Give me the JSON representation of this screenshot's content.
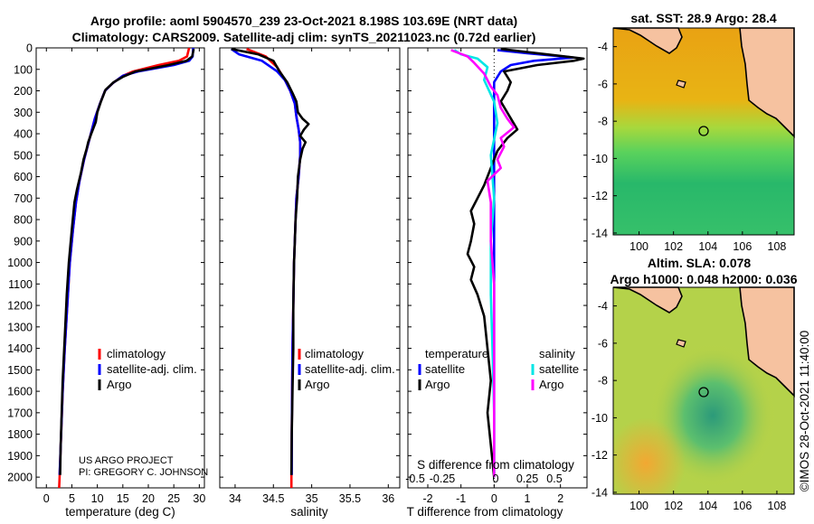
{
  "colors": {
    "climatology": "#ff0000",
    "satellite_adj": "#0000ff",
    "argo": "#000000",
    "satellite_s": "#00e6e6",
    "argo_s": "#ff00ff",
    "land": "#f6c2a0"
  },
  "header": {
    "line1": "Argo profile: aoml 5904570_239 23-Oct-2021 8.198S 103.69E (NRT data)",
    "line2": "Climatology: CARS2009. Satellite-adj clim: synTS_20211023.nc (0.72d earlier)"
  },
  "credits": {
    "project": "US ARGO PROJECT",
    "pi": "PI: GREGORY C. JOHNSON",
    "imos": "©IMOS 28-Oct-2021 11:40:00"
  },
  "chart_data": [
    {
      "type": "line",
      "name": "temperature",
      "xlabel": "temperature (deg C)",
      "xlim": [
        -2,
        31
      ],
      "xticks": [
        0,
        5,
        10,
        15,
        20,
        25,
        30
      ],
      "ylim": [
        2050,
        0
      ],
      "yticks": [
        0,
        100,
        200,
        300,
        400,
        500,
        600,
        700,
        800,
        900,
        1000,
        1100,
        1200,
        1300,
        1400,
        1500,
        1600,
        1700,
        1800,
        1900,
        2000
      ],
      "legend": [
        "climatology",
        "satellite-adj. clim.",
        "Argo"
      ],
      "series": [
        {
          "name": "climatology",
          "color": "#ff0000",
          "points": [
            [
              28.0,
              0
            ],
            [
              27.6,
              40
            ],
            [
              26,
              60
            ],
            [
              22,
              80
            ],
            [
              17,
              110
            ],
            [
              15,
              130
            ],
            [
              13,
              165
            ],
            [
              11.5,
              200
            ],
            [
              10.5,
              260
            ],
            [
              9.5,
              330
            ],
            [
              8.5,
              420
            ],
            [
              7.4,
              520
            ],
            [
              6.5,
              620
            ],
            [
              5.8,
              720
            ],
            [
              5.2,
              850
            ],
            [
              4.6,
              1000
            ],
            [
              4.1,
              1200
            ],
            [
              3.6,
              1400
            ],
            [
              3.2,
              1600
            ],
            [
              2.9,
              1800
            ],
            [
              2.6,
              2000
            ],
            [
              2.5,
              2050
            ]
          ]
        },
        {
          "name": "satellite-adj. clim.",
          "color": "#0000ff",
          "points": [
            [
              28.8,
              0
            ],
            [
              28.7,
              40
            ],
            [
              28,
              60
            ],
            [
              25,
              80
            ],
            [
              18,
              110
            ],
            [
              15,
              130
            ],
            [
              13,
              165
            ],
            [
              11.5,
              200
            ],
            [
              10.5,
              260
            ],
            [
              9.5,
              330
            ],
            [
              8.5,
              420
            ],
            [
              7.4,
              520
            ],
            [
              6.5,
              620
            ],
            [
              5.8,
              720
            ],
            [
              5.2,
              850
            ],
            [
              4.6,
              1000
            ],
            [
              4.1,
              1200
            ],
            [
              3.6,
              1400
            ],
            [
              3.2,
              1600
            ],
            [
              2.9,
              1800
            ],
            [
              2.6,
              1990
            ]
          ]
        },
        {
          "name": "Argo",
          "color": "#000000",
          "points": [
            [
              28.9,
              5
            ],
            [
              28.6,
              40
            ],
            [
              27.5,
              60
            ],
            [
              24,
              80
            ],
            [
              17.5,
              110
            ],
            [
              15,
              135
            ],
            [
              13.2,
              160
            ],
            [
              11.6,
              195
            ],
            [
              10.7,
              250
            ],
            [
              10,
              300
            ],
            [
              9.7,
              345
            ],
            [
              8.8,
              400
            ],
            [
              8.2,
              440
            ],
            [
              7.9,
              470
            ],
            [
              7.3,
              520
            ],
            [
              6.8,
              580
            ],
            [
              6.0,
              660
            ],
            [
              5.5,
              720
            ],
            [
              5.1,
              820
            ],
            [
              4.7,
              920
            ],
            [
              4.4,
              1000
            ],
            [
              4.0,
              1150
            ],
            [
              3.8,
              1250
            ],
            [
              3.5,
              1400
            ],
            [
              3.2,
              1550
            ],
            [
              3.0,
              1700
            ],
            [
              2.8,
              1850
            ],
            [
              2.7,
              1990
            ]
          ]
        }
      ]
    },
    {
      "type": "line",
      "name": "salinity",
      "xlabel": "salinity",
      "xlim": [
        33.8,
        36.15
      ],
      "xticks": [
        34,
        34.5,
        35,
        35.5,
        36
      ],
      "ylim": [
        2050,
        0
      ],
      "legend": [
        "climatology",
        "satellite-adj. clim.",
        "Argo"
      ],
      "series": [
        {
          "name": "climatology",
          "color": "#ff0000",
          "points": [
            [
              34.15,
              5
            ],
            [
              34.4,
              40
            ],
            [
              34.55,
              90
            ],
            [
              34.65,
              150
            ],
            [
              34.72,
              200
            ],
            [
              34.78,
              260
            ],
            [
              34.8,
              320
            ],
            [
              34.83,
              380
            ],
            [
              34.85,
              440
            ],
            [
              34.85,
              500
            ],
            [
              34.83,
              600
            ],
            [
              34.8,
              700
            ],
            [
              34.79,
              800
            ],
            [
              34.77,
              1000
            ],
            [
              34.76,
              1200
            ],
            [
              34.75,
              1400
            ],
            [
              34.745,
              1600
            ],
            [
              34.74,
              1800
            ],
            [
              34.735,
              2000
            ],
            [
              34.735,
              2050
            ]
          ]
        },
        {
          "name": "satellite-adj. clim.",
          "color": "#0000ff",
          "points": [
            [
              33.95,
              5
            ],
            [
              34.05,
              30
            ],
            [
              34.35,
              60
            ],
            [
              34.55,
              110
            ],
            [
              34.65,
              150
            ],
            [
              34.72,
              200
            ],
            [
              34.78,
              260
            ],
            [
              34.8,
              320
            ],
            [
              34.83,
              380
            ],
            [
              34.85,
              440
            ],
            [
              34.85,
              500
            ],
            [
              34.83,
              600
            ],
            [
              34.8,
              700
            ],
            [
              34.79,
              800
            ],
            [
              34.77,
              1000
            ],
            [
              34.76,
              1200
            ],
            [
              34.75,
              1400
            ],
            [
              34.745,
              1600
            ],
            [
              34.74,
              1800
            ],
            [
              34.74,
              1990
            ]
          ]
        },
        {
          "name": "Argo",
          "color": "#000000",
          "points": [
            [
              33.95,
              5
            ],
            [
              34.3,
              30
            ],
            [
              34.5,
              60
            ],
            [
              34.58,
              110
            ],
            [
              34.68,
              160
            ],
            [
              34.75,
              210
            ],
            [
              34.8,
              250
            ],
            [
              34.82,
              300
            ],
            [
              34.88,
              330
            ],
            [
              34.96,
              355
            ],
            [
              34.9,
              380
            ],
            [
              34.85,
              410
            ],
            [
              34.92,
              440
            ],
            [
              34.88,
              470
            ],
            [
              34.85,
              520
            ],
            [
              34.82,
              600
            ],
            [
              34.81,
              700
            ],
            [
              34.79,
              800
            ],
            [
              34.78,
              900
            ],
            [
              34.77,
              1000
            ],
            [
              34.76,
              1200
            ],
            [
              34.76,
              1400
            ],
            [
              34.75,
              1600
            ],
            [
              34.74,
              1800
            ],
            [
              34.735,
              1990
            ]
          ]
        }
      ]
    },
    {
      "type": "line",
      "name": "differences",
      "xlabel": "T difference from climatology",
      "xlabel2": "S difference from climatology",
      "xlim": [
        -2.6,
        2.8
      ],
      "xticks": [
        -2,
        -1,
        0,
        1,
        2
      ],
      "s_tick_labels": [
        "-0.5",
        "-0.25",
        "0",
        "0.25",
        "0.5"
      ],
      "ylim": [
        2050,
        0
      ],
      "legend_headers": [
        "temperature",
        "salinity"
      ],
      "legend_items": [
        "satellite",
        "Argo",
        "satellite",
        "Argo"
      ],
      "series": [
        {
          "name": "temperature satellite",
          "color": "#0000ff",
          "points": [
            [
              0.1,
              10
            ],
            [
              1.0,
              25
            ],
            [
              2.4,
              45
            ],
            [
              1.2,
              60
            ],
            [
              0.5,
              80
            ],
            [
              0.2,
              110
            ],
            [
              0,
              160
            ],
            [
              0,
              2000
            ]
          ]
        },
        {
          "name": "temperature Argo",
          "color": "#000000",
          "points": [
            [
              0.2,
              5
            ],
            [
              2.7,
              50
            ],
            [
              2.4,
              60
            ],
            [
              1.3,
              80
            ],
            [
              0.3,
              110
            ],
            [
              0.5,
              160
            ],
            [
              0.4,
              200
            ],
            [
              0.2,
              250
            ],
            [
              0.7,
              380
            ],
            [
              0.4,
              420
            ],
            [
              0.1,
              480
            ],
            [
              -0.1,
              560
            ],
            [
              -0.3,
              640
            ],
            [
              -0.5,
              700
            ],
            [
              -0.7,
              760
            ],
            [
              -0.6,
              820
            ],
            [
              -0.7,
              900
            ],
            [
              -0.8,
              960
            ],
            [
              -0.6,
              1020
            ],
            [
              -0.7,
              1080
            ],
            [
              -0.5,
              1150
            ],
            [
              -0.3,
              1250
            ],
            [
              -0.2,
              1400
            ],
            [
              -0.1,
              1550
            ],
            [
              -0.2,
              1700
            ],
            [
              -0.1,
              1850
            ],
            [
              0,
              2000
            ]
          ]
        },
        {
          "name": "salinity satellite",
          "color": "#00e6e6",
          "points": [
            [
              -1.2,
              10
            ],
            [
              -1.0,
              30
            ],
            [
              -0.5,
              50
            ],
            [
              -0.2,
              90
            ],
            [
              -0.3,
              150
            ],
            [
              0,
              250
            ],
            [
              0.1,
              350
            ],
            [
              -0.1,
              500
            ],
            [
              0,
              700
            ],
            [
              -0.1,
              900
            ],
            [
              -0.1,
              1150
            ],
            [
              -0.05,
              1400
            ],
            [
              0,
              1700
            ],
            [
              0,
              2000
            ]
          ]
        },
        {
          "name": "salinity Argo",
          "color": "#ff00ff",
          "points": [
            [
              -1.3,
              10
            ],
            [
              -0.8,
              40
            ],
            [
              -0.6,
              70
            ],
            [
              -0.3,
              120
            ],
            [
              -0.1,
              180
            ],
            [
              0.1,
              220
            ],
            [
              0.2,
              280
            ],
            [
              0.4,
              330
            ],
            [
              0.6,
              370
            ],
            [
              0.2,
              420
            ],
            [
              0.3,
              460
            ],
            [
              0.1,
              520
            ],
            [
              0.2,
              560
            ],
            [
              -0.2,
              620
            ],
            [
              -0.1,
              720
            ],
            [
              -0.1,
              900
            ],
            [
              0,
              1100
            ],
            [
              0,
              1400
            ],
            [
              0,
              1700
            ],
            [
              0,
              2000
            ]
          ]
        }
      ]
    },
    {
      "type": "heatmap",
      "name": "sst_map",
      "title": "sat. SST: 28.9 Argo: 28.4",
      "xlim": [
        98.5,
        109
      ],
      "ylim": [
        -14.1,
        -3
      ],
      "xticks": [
        100,
        102,
        104,
        106,
        108
      ],
      "yticks": [
        -4,
        -6,
        -8,
        -10,
        -12,
        -14
      ],
      "argo_position": {
        "lon": 103.69,
        "lat": -8.198
      }
    },
    {
      "type": "heatmap",
      "name": "sla_map",
      "title": "Altim. SLA: 0.078",
      "subtitle": "Argo h1000: 0.048 h2000: 0.036",
      "xlim": [
        98.5,
        109
      ],
      "ylim": [
        -14.1,
        -3
      ],
      "xticks": [
        100,
        102,
        104,
        106,
        108
      ],
      "yticks": [
        -4,
        -6,
        -8,
        -10,
        -12,
        -14
      ],
      "argo_position": {
        "lon": 103.69,
        "lat": -8.198
      }
    }
  ]
}
